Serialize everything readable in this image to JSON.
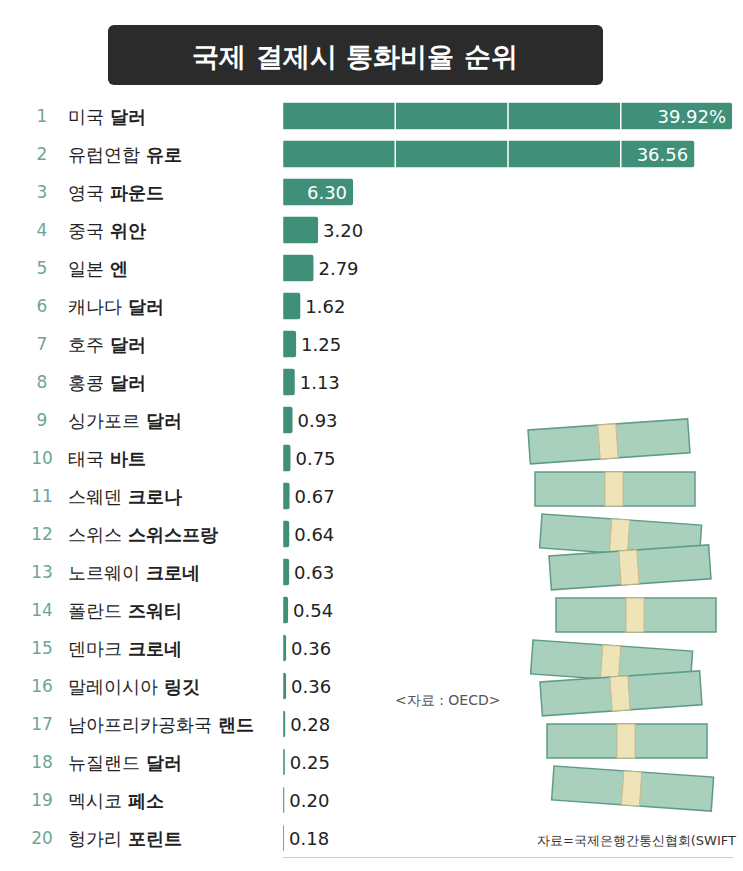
{
  "chart_data": {
    "type": "bar",
    "title": "국제 결제시 통화비율 순위",
    "orientation": "horizontal",
    "ranks": [
      1,
      2,
      3,
      4,
      5,
      6,
      7,
      8,
      9,
      10,
      11,
      12,
      13,
      14,
      15,
      16,
      17,
      18,
      19,
      20
    ],
    "categories": [
      "미국 달러",
      "유럽연합 유로",
      "영국 파운드",
      "중국 위안",
      "일본 엔",
      "캐나다 달러",
      "호주 달러",
      "홍콩 달러",
      "싱가포르 달러",
      "태국 바트",
      "스웨덴 크로나",
      "스위스 스위스프랑",
      "노르웨이 크로네",
      "폴란드 즈워티",
      "덴마크 크로네",
      "말레이시아 링깃",
      "남아프리카공화국 랜드",
      "뉴질랜드 달러",
      "멕시코 페소",
      "헝가리 포린트"
    ],
    "values": [
      39.92,
      36.56,
      6.3,
      3.2,
      2.79,
      1.62,
      1.25,
      1.13,
      0.93,
      0.75,
      0.67,
      0.64,
      0.63,
      0.54,
      0.36,
      0.36,
      0.28,
      0.25,
      0.2,
      0.18
    ],
    "value_labels": [
      "39.92%",
      "36.56",
      "6.30",
      "3.20",
      "2.79",
      "1.62",
      "1.25",
      "1.13",
      "0.93",
      "0.75",
      "0.67",
      "0.64",
      "0.63",
      "0.54",
      "0.36",
      "0.36",
      "0.28",
      "0.25",
      "0.20",
      "0.18"
    ],
    "data_labels": true,
    "color": "#3f8f79",
    "xlim": [
      0,
      40
    ],
    "xticks": [
      0,
      10,
      20,
      30,
      40
    ],
    "grid": true,
    "tick_labels": false,
    "annotations": [
      "<자료 : OECD>",
      "자료=국제은행간통신협회(SWIFT"
    ]
  }
}
